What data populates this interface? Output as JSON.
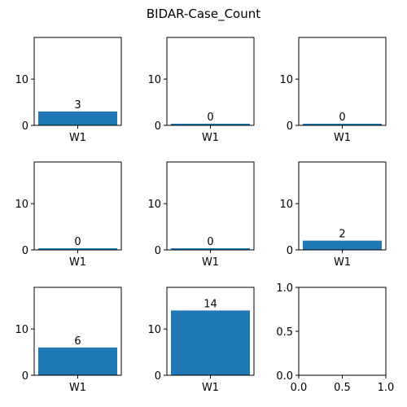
{
  "chart_data": {
    "title": "BIDAR-Case_Count",
    "type": "bar",
    "bar_color": "#1f77b4",
    "subplots": [
      {
        "type": "bar",
        "categories": [
          "W1"
        ],
        "values": [
          3
        ],
        "ylim": [
          0,
          19
        ],
        "yticks": [
          "0",
          "10"
        ]
      },
      {
        "type": "bar",
        "categories": [
          "W1"
        ],
        "values": [
          0
        ],
        "ylim": [
          0,
          19
        ],
        "yticks": [
          "0",
          "10"
        ]
      },
      {
        "type": "bar",
        "categories": [
          "W1"
        ],
        "values": [
          0
        ],
        "ylim": [
          0,
          19
        ],
        "yticks": [
          "0",
          "10"
        ]
      },
      {
        "type": "bar",
        "categories": [
          "W1"
        ],
        "values": [
          0
        ],
        "ylim": [
          0,
          19
        ],
        "yticks": [
          "0",
          "10"
        ]
      },
      {
        "type": "bar",
        "categories": [
          "W1"
        ],
        "values": [
          0
        ],
        "ylim": [
          0,
          19
        ],
        "yticks": [
          "0",
          "10"
        ]
      },
      {
        "type": "bar",
        "categories": [
          "W1"
        ],
        "values": [
          2
        ],
        "ylim": [
          0,
          19
        ],
        "yticks": [
          "0",
          "10"
        ]
      },
      {
        "type": "bar",
        "categories": [
          "W1"
        ],
        "values": [
          6
        ],
        "ylim": [
          0,
          19
        ],
        "yticks": [
          "0",
          "10"
        ]
      },
      {
        "type": "bar",
        "categories": [
          "W1"
        ],
        "values": [
          14
        ],
        "ylim": [
          0,
          19
        ],
        "yticks": [
          "0",
          "10"
        ]
      },
      {
        "type": "empty",
        "xlim": [
          0,
          1
        ],
        "ylim": [
          0,
          1
        ],
        "xticks": [
          "0.0",
          "0.5",
          "1.0"
        ],
        "yticks": [
          "0.0",
          "0.5",
          "1.0"
        ]
      }
    ]
  }
}
